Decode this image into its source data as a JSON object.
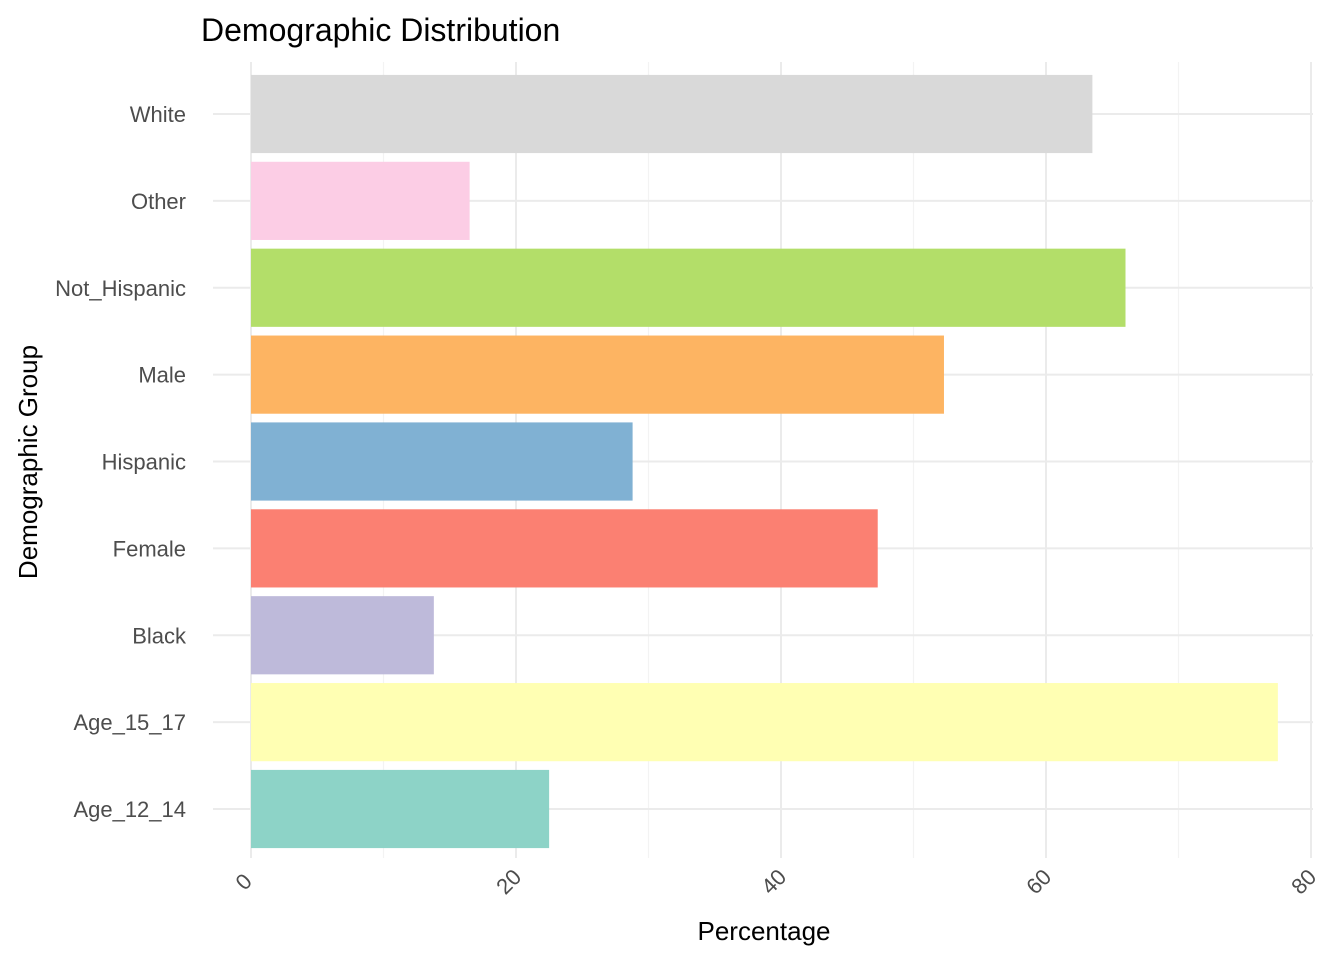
{
  "chart_data": {
    "type": "bar",
    "orientation": "horizontal",
    "title": "Demographic Distribution",
    "xlabel": "Percentage",
    "ylabel": "Demographic Group",
    "categories": [
      "Age_12_14",
      "Age_15_17",
      "Black",
      "Female",
      "Hispanic",
      "Male",
      "Not_Hispanic",
      "Other",
      "White"
    ],
    "values": [
      22.5,
      77.5,
      13.8,
      47.3,
      28.8,
      52.3,
      66.0,
      16.5,
      63.5
    ],
    "colors": [
      "#8DD3C7",
      "#FFFFB3",
      "#BEBADA",
      "#FB8072",
      "#80B1D3",
      "#FDB462",
      "#B3DE69",
      "#FCCDE5",
      "#D9D9D9"
    ],
    "xlim": [
      0,
      80
    ],
    "xticks": [
      0,
      20,
      40,
      60,
      80
    ],
    "xtick_labels": [
      "0",
      "20",
      "40",
      "60",
      "80"
    ],
    "grid": true,
    "legend": "none"
  }
}
